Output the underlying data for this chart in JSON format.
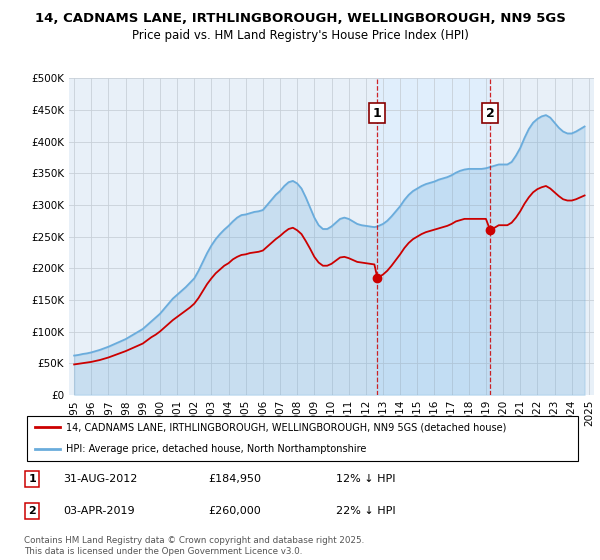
{
  "title": "14, CADNAMS LANE, IRTHLINGBOROUGH, WELLINGBOROUGH, NN9 5GS",
  "subtitle": "Price paid vs. HM Land Registry's House Price Index (HPI)",
  "plot_bg": "#e8f0f8",
  "ylim": [
    0,
    500000
  ],
  "yticks": [
    0,
    50000,
    100000,
    150000,
    200000,
    250000,
    300000,
    350000,
    400000,
    450000,
    500000
  ],
  "legend_entry1": "14, CADNAMS LANE, IRTHLINGBOROUGH, WELLINGBOROUGH, NN9 5GS (detached house)",
  "legend_entry2": "HPI: Average price, detached house, North Northamptonshire",
  "marker1_date": "31-AUG-2012",
  "marker1_price": 184950,
  "marker1_pct": "12% ↓ HPI",
  "marker2_date": "03-APR-2019",
  "marker2_price": 260000,
  "marker2_pct": "22% ↓ HPI",
  "footer": "Contains HM Land Registry data © Crown copyright and database right 2025.\nThis data is licensed under the Open Government Licence v3.0.",
  "line_color_hpi": "#6aacdc",
  "line_color_price": "#cc0000",
  "vline_color": "#cc0000",
  "marker1_x_year": 2012.67,
  "marker2_x_year": 2019.25,
  "xticks": [
    1995,
    1996,
    1997,
    1998,
    1999,
    2000,
    2001,
    2002,
    2003,
    2004,
    2005,
    2006,
    2007,
    2008,
    2009,
    2010,
    2011,
    2012,
    2013,
    2014,
    2015,
    2016,
    2017,
    2018,
    2019,
    2020,
    2021,
    2022,
    2023,
    2024,
    2025
  ],
  "xlim": [
    1994.7,
    2025.3
  ],
  "shaded_region": [
    2012.67,
    2019.25
  ],
  "hpi_data": [
    [
      1995.0,
      62000
    ],
    [
      1995.25,
      63000
    ],
    [
      1995.5,
      64500
    ],
    [
      1995.75,
      65500
    ],
    [
      1996.0,
      67000
    ],
    [
      1996.25,
      69000
    ],
    [
      1996.5,
      71000
    ],
    [
      1996.75,
      73500
    ],
    [
      1997.0,
      76000
    ],
    [
      1997.25,
      79000
    ],
    [
      1997.5,
      82000
    ],
    [
      1997.75,
      85000
    ],
    [
      1998.0,
      88000
    ],
    [
      1998.25,
      92000
    ],
    [
      1998.5,
      96000
    ],
    [
      1998.75,
      100000
    ],
    [
      1999.0,
      104000
    ],
    [
      1999.25,
      110000
    ],
    [
      1999.5,
      116000
    ],
    [
      1999.75,
      122000
    ],
    [
      2000.0,
      128000
    ],
    [
      2000.25,
      136000
    ],
    [
      2000.5,
      144000
    ],
    [
      2000.75,
      152000
    ],
    [
      2001.0,
      158000
    ],
    [
      2001.25,
      164000
    ],
    [
      2001.5,
      170000
    ],
    [
      2001.75,
      177000
    ],
    [
      2002.0,
      184000
    ],
    [
      2002.25,
      196000
    ],
    [
      2002.5,
      210000
    ],
    [
      2002.75,
      224000
    ],
    [
      2003.0,
      236000
    ],
    [
      2003.25,
      246000
    ],
    [
      2003.5,
      254000
    ],
    [
      2003.75,
      261000
    ],
    [
      2004.0,
      267000
    ],
    [
      2004.25,
      274000
    ],
    [
      2004.5,
      280000
    ],
    [
      2004.75,
      284000
    ],
    [
      2005.0,
      285000
    ],
    [
      2005.25,
      287000
    ],
    [
      2005.5,
      289000
    ],
    [
      2005.75,
      290000
    ],
    [
      2006.0,
      292000
    ],
    [
      2006.25,
      300000
    ],
    [
      2006.5,
      308000
    ],
    [
      2006.75,
      316000
    ],
    [
      2007.0,
      322000
    ],
    [
      2007.25,
      330000
    ],
    [
      2007.5,
      336000
    ],
    [
      2007.75,
      338000
    ],
    [
      2008.0,
      334000
    ],
    [
      2008.25,
      326000
    ],
    [
      2008.5,
      312000
    ],
    [
      2008.75,
      296000
    ],
    [
      2009.0,
      280000
    ],
    [
      2009.25,
      268000
    ],
    [
      2009.5,
      262000
    ],
    [
      2009.75,
      262000
    ],
    [
      2010.0,
      266000
    ],
    [
      2010.25,
      272000
    ],
    [
      2010.5,
      278000
    ],
    [
      2010.75,
      280000
    ],
    [
      2011.0,
      278000
    ],
    [
      2011.25,
      274000
    ],
    [
      2011.5,
      270000
    ],
    [
      2011.75,
      268000
    ],
    [
      2012.0,
      267000
    ],
    [
      2012.25,
      266000
    ],
    [
      2012.5,
      265000
    ],
    [
      2012.67,
      266000
    ],
    [
      2012.75,
      267000
    ],
    [
      2013.0,
      270000
    ],
    [
      2013.25,
      275000
    ],
    [
      2013.5,
      282000
    ],
    [
      2013.75,
      290000
    ],
    [
      2014.0,
      298000
    ],
    [
      2014.25,
      308000
    ],
    [
      2014.5,
      316000
    ],
    [
      2014.75,
      322000
    ],
    [
      2015.0,
      326000
    ],
    [
      2015.25,
      330000
    ],
    [
      2015.5,
      333000
    ],
    [
      2015.75,
      335000
    ],
    [
      2016.0,
      337000
    ],
    [
      2016.25,
      340000
    ],
    [
      2016.5,
      342000
    ],
    [
      2016.75,
      344000
    ],
    [
      2017.0,
      347000
    ],
    [
      2017.25,
      351000
    ],
    [
      2017.5,
      354000
    ],
    [
      2017.75,
      356000
    ],
    [
      2018.0,
      357000
    ],
    [
      2018.25,
      357000
    ],
    [
      2018.5,
      357000
    ],
    [
      2018.75,
      357000
    ],
    [
      2019.0,
      358000
    ],
    [
      2019.25,
      360000
    ],
    [
      2019.5,
      362000
    ],
    [
      2019.75,
      364000
    ],
    [
      2020.0,
      364000
    ],
    [
      2020.25,
      364000
    ],
    [
      2020.5,
      368000
    ],
    [
      2020.75,
      378000
    ],
    [
      2021.0,
      390000
    ],
    [
      2021.25,
      406000
    ],
    [
      2021.5,
      420000
    ],
    [
      2021.75,
      430000
    ],
    [
      2022.0,
      436000
    ],
    [
      2022.25,
      440000
    ],
    [
      2022.5,
      442000
    ],
    [
      2022.75,
      438000
    ],
    [
      2023.0,
      430000
    ],
    [
      2023.25,
      422000
    ],
    [
      2023.5,
      416000
    ],
    [
      2023.75,
      413000
    ],
    [
      2024.0,
      413000
    ],
    [
      2024.25,
      416000
    ],
    [
      2024.5,
      420000
    ],
    [
      2024.75,
      424000
    ]
  ],
  "price_data": [
    [
      1995.0,
      48000
    ],
    [
      1995.25,
      49000
    ],
    [
      1995.5,
      50000
    ],
    [
      1995.75,
      51000
    ],
    [
      1996.0,
      52000
    ],
    [
      1996.25,
      53500
    ],
    [
      1996.5,
      55000
    ],
    [
      1996.75,
      57000
    ],
    [
      1997.0,
      59000
    ],
    [
      1997.25,
      61500
    ],
    [
      1997.5,
      64000
    ],
    [
      1997.75,
      66500
    ],
    [
      1998.0,
      69000
    ],
    [
      1998.25,
      72000
    ],
    [
      1998.5,
      75000
    ],
    [
      1998.75,
      78000
    ],
    [
      1999.0,
      81000
    ],
    [
      1999.25,
      86000
    ],
    [
      1999.5,
      91000
    ],
    [
      1999.75,
      95000
    ],
    [
      2000.0,
      100000
    ],
    [
      2000.25,
      106000
    ],
    [
      2000.5,
      112000
    ],
    [
      2000.75,
      118000
    ],
    [
      2001.0,
      123000
    ],
    [
      2001.25,
      128000
    ],
    [
      2001.5,
      133000
    ],
    [
      2001.75,
      138000
    ],
    [
      2002.0,
      144000
    ],
    [
      2002.25,
      153000
    ],
    [
      2002.5,
      164000
    ],
    [
      2002.75,
      175000
    ],
    [
      2003.0,
      184000
    ],
    [
      2003.25,
      192000
    ],
    [
      2003.5,
      198000
    ],
    [
      2003.75,
      204000
    ],
    [
      2004.0,
      208000
    ],
    [
      2004.25,
      214000
    ],
    [
      2004.5,
      218000
    ],
    [
      2004.75,
      221000
    ],
    [
      2005.0,
      222000
    ],
    [
      2005.25,
      224000
    ],
    [
      2005.5,
      225000
    ],
    [
      2005.75,
      226000
    ],
    [
      2006.0,
      228000
    ],
    [
      2006.25,
      234000
    ],
    [
      2006.5,
      240000
    ],
    [
      2006.75,
      246000
    ],
    [
      2007.0,
      251000
    ],
    [
      2007.25,
      257000
    ],
    [
      2007.5,
      262000
    ],
    [
      2007.75,
      264000
    ],
    [
      2008.0,
      260000
    ],
    [
      2008.25,
      254000
    ],
    [
      2008.5,
      243000
    ],
    [
      2008.75,
      231000
    ],
    [
      2009.0,
      218000
    ],
    [
      2009.25,
      209000
    ],
    [
      2009.5,
      204000
    ],
    [
      2009.75,
      204000
    ],
    [
      2010.0,
      207000
    ],
    [
      2010.25,
      212000
    ],
    [
      2010.5,
      217000
    ],
    [
      2010.75,
      218000
    ],
    [
      2011.0,
      216000
    ],
    [
      2011.25,
      213000
    ],
    [
      2011.5,
      210000
    ],
    [
      2011.75,
      209000
    ],
    [
      2012.0,
      208000
    ],
    [
      2012.25,
      207000
    ],
    [
      2012.5,
      206000
    ],
    [
      2012.67,
      184950
    ],
    [
      2012.75,
      186000
    ],
    [
      2013.0,
      190000
    ],
    [
      2013.25,
      196000
    ],
    [
      2013.5,
      204000
    ],
    [
      2013.75,
      213000
    ],
    [
      2014.0,
      222000
    ],
    [
      2014.25,
      232000
    ],
    [
      2014.5,
      240000
    ],
    [
      2014.75,
      246000
    ],
    [
      2015.0,
      250000
    ],
    [
      2015.25,
      254000
    ],
    [
      2015.5,
      257000
    ],
    [
      2015.75,
      259000
    ],
    [
      2016.0,
      261000
    ],
    [
      2016.25,
      263000
    ],
    [
      2016.5,
      265000
    ],
    [
      2016.75,
      267000
    ],
    [
      2017.0,
      270000
    ],
    [
      2017.25,
      274000
    ],
    [
      2017.5,
      276000
    ],
    [
      2017.75,
      278000
    ],
    [
      2018.0,
      278000
    ],
    [
      2018.25,
      278000
    ],
    [
      2018.5,
      278000
    ],
    [
      2018.75,
      278000
    ],
    [
      2019.0,
      278000
    ],
    [
      2019.25,
      260000
    ],
    [
      2019.5,
      264000
    ],
    [
      2019.75,
      268000
    ],
    [
      2020.0,
      268000
    ],
    [
      2020.25,
      268000
    ],
    [
      2020.5,
      272000
    ],
    [
      2020.75,
      280000
    ],
    [
      2021.0,
      290000
    ],
    [
      2021.25,
      302000
    ],
    [
      2021.5,
      312000
    ],
    [
      2021.75,
      320000
    ],
    [
      2022.0,
      325000
    ],
    [
      2022.25,
      328000
    ],
    [
      2022.5,
      330000
    ],
    [
      2022.75,
      326000
    ],
    [
      2023.0,
      320000
    ],
    [
      2023.25,
      314000
    ],
    [
      2023.5,
      309000
    ],
    [
      2023.75,
      307000
    ],
    [
      2024.0,
      307000
    ],
    [
      2024.25,
      309000
    ],
    [
      2024.5,
      312000
    ],
    [
      2024.75,
      315000
    ]
  ]
}
